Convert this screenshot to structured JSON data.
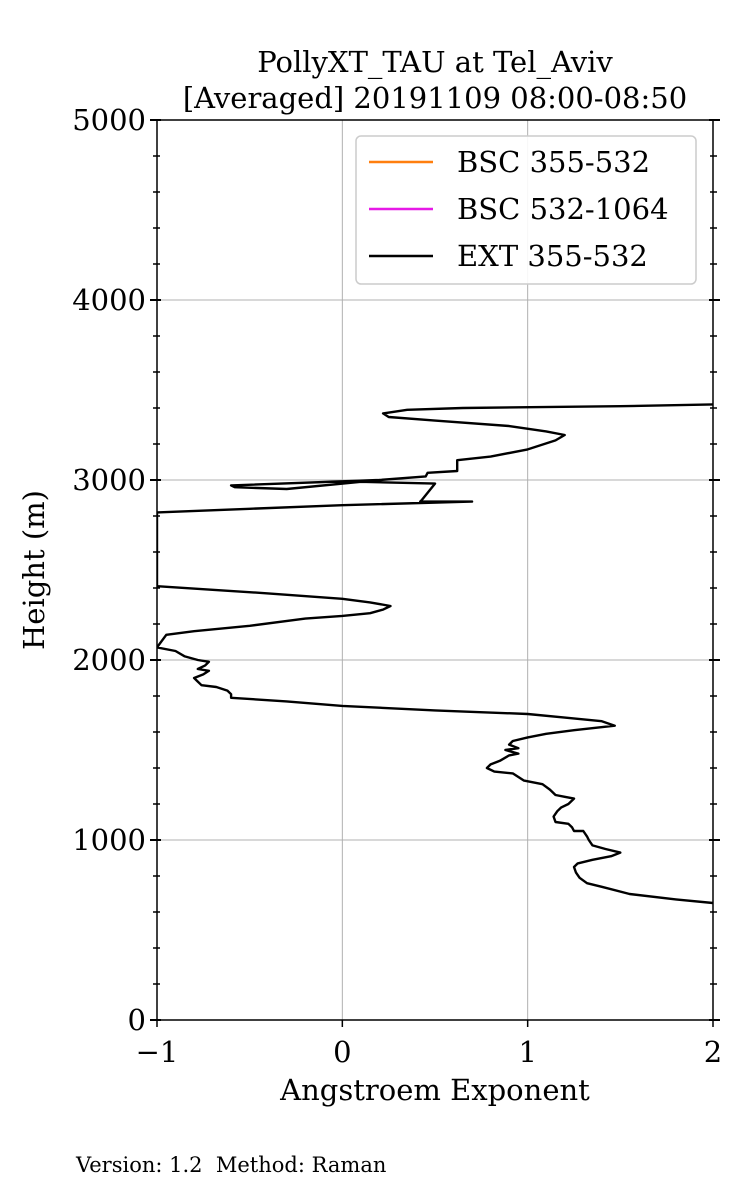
{
  "chart_data": {
    "type": "line",
    "title_line1": "PollyXT_TAU at Tel_Aviv",
    "title_line2": "[Averaged] 20191109 08:00-08:50",
    "xlabel": "Angstroem Exponent",
    "ylabel": "Height (m)",
    "xlim": [
      -1,
      2
    ],
    "ylim": [
      0,
      5000
    ],
    "x_ticks": [
      -1,
      0,
      1,
      2
    ],
    "x_tick_labels": [
      "−1",
      "0",
      "1",
      "2"
    ],
    "y_ticks": [
      0,
      1000,
      2000,
      3000,
      4000,
      5000
    ],
    "y_tick_labels": [
      "0",
      "1000",
      "2000",
      "3000",
      "4000",
      "5000"
    ],
    "y_minor_step": 200,
    "grid": true,
    "legend_position": "top-right",
    "series": [
      {
        "name": "BSC 355-532",
        "color": "#ff7f0e",
        "points": []
      },
      {
        "name": "BSC 532-1064",
        "color": "#e619e6",
        "points": []
      },
      {
        "name": "EXT 355-532",
        "color": "#000000",
        "points": [
          [
            2.0,
            650
          ],
          [
            1.8,
            670
          ],
          [
            1.55,
            700
          ],
          [
            1.4,
            740
          ],
          [
            1.32,
            760
          ],
          [
            1.28,
            790
          ],
          [
            1.26,
            820
          ],
          [
            1.25,
            850
          ],
          [
            1.27,
            870
          ],
          [
            1.35,
            890
          ],
          [
            1.45,
            910
          ],
          [
            1.5,
            930
          ],
          [
            1.42,
            950
          ],
          [
            1.35,
            970
          ],
          [
            1.33,
            1000
          ],
          [
            1.32,
            1020
          ],
          [
            1.3,
            1050
          ],
          [
            1.25,
            1050
          ],
          [
            1.24,
            1070
          ],
          [
            1.22,
            1090
          ],
          [
            1.15,
            1100
          ],
          [
            1.14,
            1130
          ],
          [
            1.16,
            1160
          ],
          [
            1.18,
            1180
          ],
          [
            1.22,
            1200
          ],
          [
            1.25,
            1230
          ],
          [
            1.2,
            1240
          ],
          [
            1.15,
            1250
          ],
          [
            1.12,
            1280
          ],
          [
            1.08,
            1310
          ],
          [
            0.98,
            1330
          ],
          [
            0.95,
            1350
          ],
          [
            0.92,
            1370
          ],
          [
            0.82,
            1380
          ],
          [
            0.78,
            1400
          ],
          [
            0.8,
            1420
          ],
          [
            0.85,
            1440
          ],
          [
            0.9,
            1470
          ],
          [
            0.95,
            1480
          ],
          [
            0.88,
            1500
          ],
          [
            0.95,
            1510
          ],
          [
            0.9,
            1530
          ],
          [
            0.92,
            1550
          ],
          [
            1.0,
            1570
          ],
          [
            1.1,
            1590
          ],
          [
            1.25,
            1610
          ],
          [
            1.47,
            1635
          ],
          [
            1.4,
            1660
          ],
          [
            1.2,
            1680
          ],
          [
            1.0,
            1700
          ],
          [
            0.5,
            1720
          ],
          [
            0.0,
            1745
          ],
          [
            -0.3,
            1770
          ],
          [
            -0.6,
            1790
          ],
          [
            -0.6,
            1810
          ],
          [
            -0.62,
            1830
          ],
          [
            -0.68,
            1850
          ],
          [
            -0.76,
            1860
          ],
          [
            -0.78,
            1880
          ],
          [
            -0.8,
            1900
          ],
          [
            -0.75,
            1920
          ],
          [
            -0.72,
            1940
          ],
          [
            -0.78,
            1950
          ],
          [
            -0.74,
            1970
          ],
          [
            -0.72,
            1990
          ],
          [
            -0.78,
            2000
          ],
          [
            -0.85,
            2020
          ],
          [
            -0.9,
            2050
          ],
          [
            -1.0,
            2070
          ],
          [
            -0.95,
            2140
          ],
          [
            -0.8,
            2160
          ],
          [
            -0.5,
            2190
          ],
          [
            -0.2,
            2230
          ],
          [
            0.0,
            2245
          ],
          [
            0.15,
            2260
          ],
          [
            0.22,
            2280
          ],
          [
            0.26,
            2300
          ],
          [
            0.15,
            2320
          ],
          [
            0.0,
            2340
          ],
          [
            -0.4,
            2370
          ],
          [
            -0.7,
            2390
          ],
          [
            -1.0,
            2410
          ],
          [
            -1.0,
            2820
          ],
          [
            -0.5,
            2840
          ],
          [
            0.0,
            2860
          ],
          [
            0.7,
            2880
          ],
          [
            0.42,
            2880
          ],
          [
            0.43,
            2890
          ],
          [
            0.5,
            2980
          ],
          [
            0.1,
            2990
          ],
          [
            -0.3,
            2950
          ],
          [
            -0.58,
            2960
          ],
          [
            -0.6,
            2970
          ],
          [
            0.2,
            3000
          ],
          [
            0.45,
            3020
          ],
          [
            0.46,
            3040
          ],
          [
            0.62,
            3050
          ],
          [
            0.62,
            3110
          ],
          [
            0.8,
            3130
          ],
          [
            1.0,
            3170
          ],
          [
            1.15,
            3220
          ],
          [
            1.2,
            3250
          ],
          [
            1.1,
            3270
          ],
          [
            0.9,
            3300
          ],
          [
            0.5,
            3330
          ],
          [
            0.25,
            3350
          ],
          [
            0.22,
            3370
          ],
          [
            0.35,
            3390
          ],
          [
            0.65,
            3400
          ],
          [
            1.5,
            3410
          ],
          [
            2.0,
            3420
          ]
        ]
      }
    ]
  },
  "footer": "Version: 1.2  Method: Raman"
}
